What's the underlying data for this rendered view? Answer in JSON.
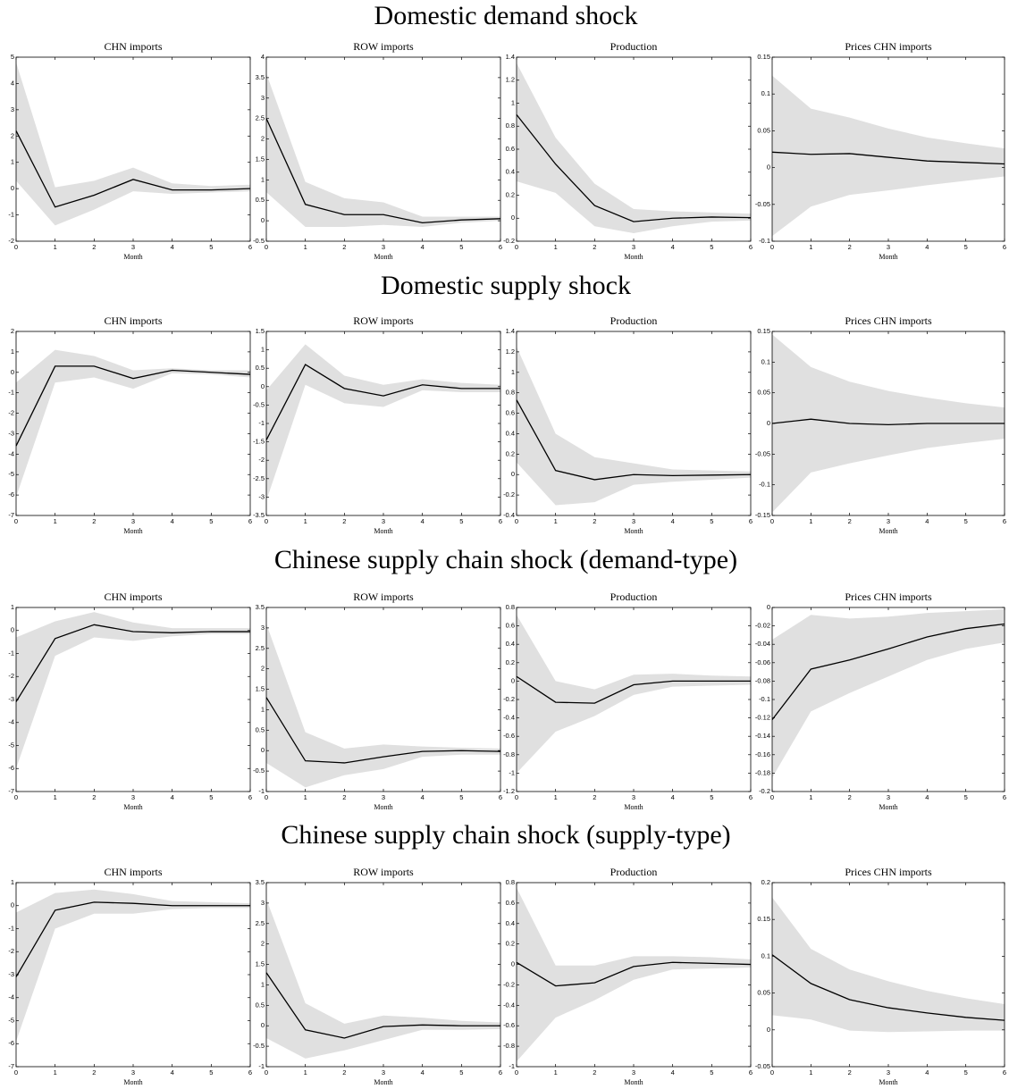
{
  "row_titles": [
    "Domestic demand shock",
    "Domestic supply shock",
    "Chinese supply chain shock (demand-type)",
    "Chinese supply chain shock (supply-type)"
  ],
  "chart_data": [
    {
      "type": "line",
      "title": "CHN imports",
      "xlabel": "Month",
      "x": [
        0,
        1,
        2,
        3,
        4,
        5,
        6
      ],
      "xlim": [
        0,
        6
      ],
      "xticks": [
        0,
        1,
        2,
        3,
        4,
        5,
        6
      ],
      "ylim": [
        -2,
        5
      ],
      "yticks": [
        -2,
        -1,
        0,
        1,
        2,
        3,
        4,
        5
      ],
      "series": [
        {
          "color": "#000000",
          "values": [
            2.2,
            -0.7,
            -0.25,
            0.35,
            -0.05,
            -0.05,
            0.0
          ]
        }
      ],
      "band": {
        "color": "#e0e0e0",
        "upper": [
          4.8,
          0.05,
          0.3,
          0.8,
          0.2,
          0.1,
          0.15
        ],
        "lower": [
          0.3,
          -1.4,
          -0.8,
          -0.1,
          -0.2,
          -0.15,
          -0.1
        ]
      }
    },
    {
      "type": "line",
      "title": "ROW imports",
      "xlabel": "Month",
      "x": [
        0,
        1,
        2,
        3,
        4,
        5,
        6
      ],
      "xlim": [
        0,
        6
      ],
      "xticks": [
        0,
        1,
        2,
        3,
        4,
        5,
        6
      ],
      "ylim": [
        -0.5,
        4
      ],
      "yticks": [
        -0.5,
        0,
        0.5,
        1,
        1.5,
        2,
        2.5,
        3,
        3.5,
        4
      ],
      "series": [
        {
          "color": "#000000",
          "values": [
            2.5,
            0.4,
            0.15,
            0.15,
            -0.05,
            0.02,
            0.05
          ]
        }
      ],
      "band": {
        "color": "#e0e0e0",
        "upper": [
          3.6,
          0.95,
          0.55,
          0.45,
          0.1,
          0.1,
          0.1
        ],
        "lower": [
          0.7,
          -0.15,
          -0.15,
          -0.1,
          -0.15,
          -0.05,
          0.0
        ]
      }
    },
    {
      "type": "line",
      "title": "Production",
      "xlabel": "Month",
      "x": [
        0,
        1,
        2,
        3,
        4,
        5,
        6
      ],
      "xlim": [
        0,
        6
      ],
      "xticks": [
        0,
        1,
        2,
        3,
        4,
        5,
        6
      ],
      "ylim": [
        -0.2,
        1.4
      ],
      "yticks": [
        -0.2,
        0,
        0.2,
        0.4,
        0.6,
        0.8,
        1,
        1.2,
        1.4
      ],
      "series": [
        {
          "color": "#000000",
          "values": [
            0.9,
            0.47,
            0.11,
            -0.03,
            0.0,
            0.01,
            0.005
          ]
        }
      ],
      "band": {
        "color": "#e0e0e0",
        "upper": [
          1.35,
          0.7,
          0.3,
          0.08,
          0.06,
          0.05,
          0.04
        ],
        "lower": [
          0.32,
          0.22,
          -0.07,
          -0.13,
          -0.07,
          -0.03,
          -0.02
        ]
      }
    },
    {
      "type": "line",
      "title": "Prices CHN imports",
      "xlabel": "Month",
      "x": [
        0,
        1,
        2,
        3,
        4,
        5,
        6
      ],
      "xlim": [
        0,
        6
      ],
      "xticks": [
        0,
        1,
        2,
        3,
        4,
        5,
        6
      ],
      "ylim": [
        -0.1,
        0.15
      ],
      "yticks": [
        -0.1,
        -0.05,
        0,
        0.05,
        0.1,
        0.15
      ],
      "series": [
        {
          "color": "#000000",
          "values": [
            0.021,
            0.018,
            0.019,
            0.014,
            0.009,
            0.007,
            0.005
          ]
        }
      ],
      "band": {
        "color": "#e0e0e0",
        "upper": [
          0.125,
          0.08,
          0.068,
          0.053,
          0.041,
          0.033,
          0.026
        ],
        "lower": [
          -0.093,
          -0.053,
          -0.037,
          -0.031,
          -0.024,
          -0.018,
          -0.012
        ]
      }
    },
    {
      "type": "line",
      "title": "CHN imports",
      "xlabel": "Month",
      "x": [
        0,
        1,
        2,
        3,
        4,
        5,
        6
      ],
      "xlim": [
        0,
        6
      ],
      "xticks": [
        0,
        1,
        2,
        3,
        4,
        5,
        6
      ],
      "ylim": [
        -7,
        2
      ],
      "yticks": [
        -7,
        -6,
        -5,
        -4,
        -3,
        -2,
        -1,
        0,
        1,
        2
      ],
      "series": [
        {
          "color": "#000000",
          "values": [
            -3.6,
            0.3,
            0.3,
            -0.3,
            0.1,
            0.0,
            -0.1
          ]
        }
      ],
      "band": {
        "color": "#e0e0e0",
        "upper": [
          -0.5,
          1.1,
          0.8,
          0.1,
          0.2,
          0.1,
          0.1
        ],
        "lower": [
          -6.1,
          -0.5,
          -0.25,
          -0.8,
          -0.05,
          -0.1,
          -0.25
        ]
      }
    },
    {
      "type": "line",
      "title": "ROW imports",
      "xlabel": "Month",
      "x": [
        0,
        1,
        2,
        3,
        4,
        5,
        6
      ],
      "xlim": [
        0,
        6
      ],
      "xticks": [
        0,
        1,
        2,
        3,
        4,
        5,
        6
      ],
      "ylim": [
        -3.5,
        1.5
      ],
      "yticks": [
        -3.5,
        -3,
        -2.5,
        -2,
        -1.5,
        -1,
        -0.5,
        0,
        0.5,
        1,
        1.5
      ],
      "series": [
        {
          "color": "#000000",
          "values": [
            -1.45,
            0.6,
            -0.05,
            -0.25,
            0.05,
            -0.05,
            -0.05
          ]
        }
      ],
      "band": {
        "color": "#e0e0e0",
        "upper": [
          -0.1,
          1.15,
          0.3,
          0.05,
          0.2,
          0.1,
          0.05
        ],
        "lower": [
          -3.1,
          0.05,
          -0.45,
          -0.55,
          -0.1,
          -0.15,
          -0.15
        ]
      }
    },
    {
      "type": "line",
      "title": "Production",
      "xlabel": "Month",
      "x": [
        0,
        1,
        2,
        3,
        4,
        5,
        6
      ],
      "xlim": [
        0,
        6
      ],
      "xticks": [
        0,
        1,
        2,
        3,
        4,
        5,
        6
      ],
      "ylim": [
        -0.4,
        1.4
      ],
      "yticks": [
        -0.4,
        -0.2,
        0,
        0.2,
        0.4,
        0.6,
        0.8,
        1,
        1.2,
        1.4
      ],
      "series": [
        {
          "color": "#000000",
          "values": [
            0.73,
            0.04,
            -0.05,
            0.0,
            -0.01,
            -0.005,
            0.0
          ]
        }
      ],
      "band": {
        "color": "#e0e0e0",
        "upper": [
          1.25,
          0.4,
          0.17,
          0.11,
          0.05,
          0.04,
          0.03
        ],
        "lower": [
          0.12,
          -0.3,
          -0.27,
          -0.1,
          -0.07,
          -0.05,
          -0.03
        ]
      }
    },
    {
      "type": "line",
      "title": "Prices CHN imports",
      "xlabel": "Month",
      "x": [
        0,
        1,
        2,
        3,
        4,
        5,
        6
      ],
      "xlim": [
        0,
        6
      ],
      "xticks": [
        0,
        1,
        2,
        3,
        4,
        5,
        6
      ],
      "ylim": [
        -0.15,
        0.15
      ],
      "yticks": [
        -0.15,
        -0.1,
        -0.05,
        0,
        0.05,
        0.1,
        0.15
      ],
      "series": [
        {
          "color": "#000000",
          "values": [
            0.0,
            0.007,
            0.0,
            -0.002,
            0.0,
            0.0,
            0.0
          ]
        }
      ],
      "band": {
        "color": "#e0e0e0",
        "upper": [
          0.145,
          0.092,
          0.068,
          0.053,
          0.042,
          0.033,
          0.026
        ],
        "lower": [
          -0.145,
          -0.08,
          -0.065,
          -0.052,
          -0.04,
          -0.032,
          -0.025
        ]
      }
    },
    {
      "type": "line",
      "title": "CHN imports",
      "xlabel": "Month",
      "x": [
        0,
        1,
        2,
        3,
        4,
        5,
        6
      ],
      "xlim": [
        0,
        6
      ],
      "xticks": [
        0,
        1,
        2,
        3,
        4,
        5,
        6
      ],
      "ylim": [
        -7,
        1
      ],
      "yticks": [
        -7,
        -6,
        -5,
        -4,
        -3,
        -2,
        -1,
        0,
        1
      ],
      "series": [
        {
          "color": "#000000",
          "values": [
            -3.1,
            -0.35,
            0.25,
            -0.05,
            -0.1,
            -0.05,
            -0.05
          ]
        }
      ],
      "band": {
        "color": "#e0e0e0",
        "upper": [
          -0.3,
          0.4,
          0.8,
          0.35,
          0.1,
          0.1,
          0.1
        ],
        "lower": [
          -6.0,
          -1.1,
          -0.3,
          -0.45,
          -0.25,
          -0.15,
          -0.15
        ]
      }
    },
    {
      "type": "line",
      "title": "ROW imports",
      "xlabel": "Month",
      "x": [
        0,
        1,
        2,
        3,
        4,
        5,
        6
      ],
      "xlim": [
        0,
        6
      ],
      "xticks": [
        0,
        1,
        2,
        3,
        4,
        5,
        6
      ],
      "ylim": [
        -1,
        3.5
      ],
      "yticks": [
        -1,
        -0.5,
        0,
        0.5,
        1,
        1.5,
        2,
        2.5,
        3,
        3.5
      ],
      "series": [
        {
          "color": "#000000",
          "values": [
            1.3,
            -0.25,
            -0.3,
            -0.15,
            -0.02,
            0.0,
            -0.02
          ]
        }
      ],
      "band": {
        "color": "#e0e0e0",
        "upper": [
          3.1,
          0.45,
          0.05,
          0.15,
          0.1,
          0.07,
          0.05
        ],
        "lower": [
          -0.3,
          -0.9,
          -0.6,
          -0.45,
          -0.15,
          -0.1,
          -0.1
        ]
      }
    },
    {
      "type": "line",
      "title": "Production",
      "xlabel": "Month",
      "x": [
        0,
        1,
        2,
        3,
        4,
        5,
        6
      ],
      "xlim": [
        0,
        6
      ],
      "xticks": [
        0,
        1,
        2,
        3,
        4,
        5,
        6
      ],
      "ylim": [
        -1.2,
        0.8
      ],
      "yticks": [
        -1.2,
        -1,
        -0.8,
        -0.6,
        -0.4,
        -0.2,
        0,
        0.2,
        0.4,
        0.6,
        0.8
      ],
      "series": [
        {
          "color": "#000000",
          "values": [
            0.05,
            -0.23,
            -0.24,
            -0.04,
            0.0,
            0.0,
            0.0
          ]
        }
      ],
      "band": {
        "color": "#e0e0e0",
        "upper": [
          0.72,
          0.0,
          -0.09,
          0.07,
          0.08,
          0.06,
          0.05
        ],
        "lower": [
          -1.0,
          -0.55,
          -0.38,
          -0.15,
          -0.06,
          -0.05,
          -0.04
        ]
      }
    },
    {
      "type": "line",
      "title": "Prices CHN imports",
      "xlabel": "Month",
      "x": [
        0,
        1,
        2,
        3,
        4,
        5,
        6
      ],
      "xlim": [
        0,
        6
      ],
      "xticks": [
        0,
        1,
        2,
        3,
        4,
        5,
        6
      ],
      "ylim": [
        -0.2,
        0
      ],
      "yticks": [
        -0.2,
        -0.18,
        -0.16,
        -0.14,
        -0.12,
        -0.1,
        -0.08,
        -0.06,
        -0.04,
        -0.02,
        0
      ],
      "series": [
        {
          "color": "#000000",
          "values": [
            -0.122,
            -0.067,
            -0.057,
            -0.045,
            -0.032,
            -0.023,
            -0.018
          ]
        }
      ],
      "band": {
        "color": "#e0e0e0",
        "upper": [
          -0.035,
          -0.008,
          -0.012,
          -0.01,
          -0.006,
          -0.004,
          -0.002
        ],
        "lower": [
          -0.185,
          -0.113,
          -0.093,
          -0.075,
          -0.057,
          -0.045,
          -0.038
        ]
      }
    },
    {
      "type": "line",
      "title": "CHN imports",
      "xlabel": "Month",
      "x": [
        0,
        1,
        2,
        3,
        4,
        5,
        6
      ],
      "xlim": [
        0,
        6
      ],
      "xticks": [
        0,
        1,
        2,
        3,
        4,
        5,
        6
      ],
      "ylim": [
        -7,
        1
      ],
      "yticks": [
        -7,
        -6,
        -5,
        -4,
        -3,
        -2,
        -1,
        0,
        1
      ],
      "series": [
        {
          "color": "#000000",
          "values": [
            -3.1,
            -0.2,
            0.15,
            0.1,
            0.0,
            0.0,
            0.0
          ]
        }
      ],
      "band": {
        "color": "#e0e0e0",
        "upper": [
          -0.3,
          0.55,
          0.7,
          0.5,
          0.2,
          0.15,
          0.1
        ],
        "lower": [
          -5.9,
          -1.0,
          -0.35,
          -0.35,
          -0.15,
          -0.1,
          -0.1
        ]
      }
    },
    {
      "type": "line",
      "title": "ROW imports",
      "xlabel": "Month",
      "x": [
        0,
        1,
        2,
        3,
        4,
        5,
        6
      ],
      "xlim": [
        0,
        6
      ],
      "xticks": [
        0,
        1,
        2,
        3,
        4,
        5,
        6
      ],
      "ylim": [
        -1,
        3.5
      ],
      "yticks": [
        -1,
        -0.5,
        0,
        0.5,
        1,
        1.5,
        2,
        2.5,
        3,
        3.5
      ],
      "series": [
        {
          "color": "#000000",
          "values": [
            1.3,
            -0.1,
            -0.3,
            -0.02,
            0.02,
            0.0,
            0.0
          ]
        }
      ],
      "band": {
        "color": "#e0e0e0",
        "upper": [
          3.1,
          0.55,
          0.05,
          0.25,
          0.2,
          0.12,
          0.08
        ],
        "lower": [
          -0.3,
          -0.8,
          -0.6,
          -0.35,
          -0.1,
          -0.1,
          -0.08
        ]
      }
    },
    {
      "type": "line",
      "title": "Production",
      "xlabel": "Month",
      "x": [
        0,
        1,
        2,
        3,
        4,
        5,
        6
      ],
      "xlim": [
        0,
        6
      ],
      "xticks": [
        0,
        1,
        2,
        3,
        4,
        5,
        6
      ],
      "ylim": [
        -1,
        0.8
      ],
      "yticks": [
        -1,
        -0.8,
        -0.6,
        -0.4,
        -0.2,
        0,
        0.2,
        0.4,
        0.6,
        0.8
      ],
      "series": [
        {
          "color": "#000000",
          "values": [
            0.02,
            -0.21,
            -0.18,
            -0.02,
            0.02,
            0.01,
            0.0
          ]
        }
      ],
      "band": {
        "color": "#e0e0e0",
        "upper": [
          0.75,
          -0.01,
          -0.01,
          0.08,
          0.08,
          0.07,
          0.05
        ],
        "lower": [
          -0.95,
          -0.52,
          -0.35,
          -0.15,
          -0.05,
          -0.04,
          -0.03
        ]
      }
    },
    {
      "type": "line",
      "title": "Prices CHN imports",
      "xlabel": "Month",
      "x": [
        0,
        1,
        2,
        3,
        4,
        5,
        6
      ],
      "xlim": [
        0,
        6
      ],
      "xticks": [
        0,
        1,
        2,
        3,
        4,
        5,
        6
      ],
      "ylim": [
        -0.05,
        0.2
      ],
      "yticks": [
        -0.05,
        0,
        0.05,
        0.1,
        0.15,
        0.2
      ],
      "series": [
        {
          "color": "#000000",
          "values": [
            0.102,
            0.063,
            0.041,
            0.03,
            0.023,
            0.017,
            0.013
          ]
        }
      ],
      "band": {
        "color": "#e0e0e0",
        "upper": [
          0.18,
          0.11,
          0.082,
          0.066,
          0.053,
          0.043,
          0.035
        ],
        "lower": [
          0.02,
          0.014,
          -0.001,
          -0.003,
          -0.002,
          -0.001,
          -0.001
        ]
      }
    }
  ]
}
